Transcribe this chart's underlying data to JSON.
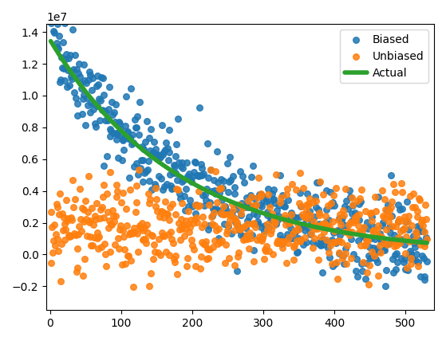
{
  "n_points": 530,
  "actual_scale": 13500000,
  "actual_decay": 0.0055,
  "biased_noise": 1300000,
  "biased_extra_scale": 1500000,
  "biased_extra_decay": 0.04,
  "unbiased_noise": 1400000,
  "unbiased_slope": -600,
  "unbiased_intercept": 1800000,
  "colors": {
    "biased": "#1f77b4",
    "unbiased": "#ff7f0e",
    "actual": "#2ca02c"
  },
  "legend_labels": [
    "Biased",
    "Unbiased",
    "Actual"
  ],
  "ylim": [
    -3500000,
    14500000
  ],
  "xlim": [
    -5,
    540
  ],
  "figsize": [
    5.59,
    4.28
  ],
  "dpi": 100,
  "dot_size": 30,
  "actual_linewidth": 4
}
